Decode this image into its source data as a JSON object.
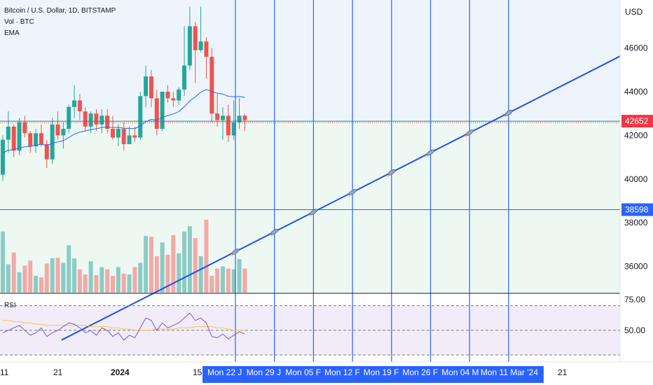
{
  "legend": {
    "symbol": "Bitcoin / U.S. Dollar, 1D, BITSTAMP",
    "volume": "Vol · BTC",
    "ema": "EMA"
  },
  "currency": "USD",
  "rsi_label": "RSI",
  "colors": {
    "up": "#26a69a",
    "down": "#ef5350",
    "up_vol": "#8ccbc3",
    "down_vol": "#f2a9a7",
    "ema": "#2962ff",
    "rsi": "#7e57c2",
    "rsi_ma": "#f5c542",
    "blue": "#2962ff",
    "green_line": "#089981",
    "price_tag": "#f23645",
    "zone_blue": "#eef4fc",
    "zone_green": "#edf8f3",
    "rsi_bg": "#f1ecf8"
  },
  "chart_data": {
    "type": "candlestick",
    "price_axis": {
      "ticks": [
        "46000",
        "44000",
        "42000",
        "40000",
        "38000",
        "36000"
      ],
      "tick_values": [
        46000,
        44000,
        42000,
        40000,
        38000,
        36000
      ],
      "range": [
        34800,
        48200
      ]
    },
    "last_price": {
      "value": 42652,
      "label": "42652"
    },
    "horizontal_level": {
      "value": 38598,
      "label": "38598"
    },
    "rsi_axis": {
      "ticks": [
        "75.00",
        "50.00"
      ],
      "tick_values": [
        75,
        50
      ],
      "range": [
        25,
        80
      ],
      "bands": [
        70,
        30
      ]
    },
    "time_axis": [
      "11",
      "21",
      "2024",
      "15",
      "21"
    ],
    "date_markers": [
      "Mon 22 J",
      "Mon 29 J",
      "Mon 05 F",
      "Mon 12 F",
      "Mon 19 F",
      "Mon 26 F",
      "Mon 04 M",
      "Mon 11 Mar '24"
    ],
    "candles": [
      [
        40200,
        42000,
        39900,
        41800
      ],
      [
        41800,
        43100,
        41200,
        42400
      ],
      [
        42400,
        42500,
        41000,
        41300
      ],
      [
        41300,
        42800,
        41100,
        42600
      ],
      [
        42600,
        42900,
        41900,
        42100
      ],
      [
        42100,
        42200,
        41200,
        41500
      ],
      [
        41500,
        42300,
        41200,
        42100
      ],
      [
        42100,
        42500,
        41500,
        41600
      ],
      [
        41600,
        41800,
        40500,
        40900
      ],
      [
        40900,
        42800,
        40700,
        42500
      ],
      [
        42500,
        43100,
        41800,
        42000
      ],
      [
        42000,
        42600,
        41400,
        42300
      ],
      [
        42300,
        43400,
        42100,
        43300
      ],
      [
        43300,
        44300,
        42800,
        43600
      ],
      [
        43600,
        43900,
        42700,
        43100
      ],
      [
        43100,
        43300,
        42200,
        42400
      ],
      [
        42400,
        43100,
        42100,
        43000
      ],
      [
        43000,
        43200,
        42200,
        42500
      ],
      [
        42500,
        43200,
        42100,
        42900
      ],
      [
        42900,
        43200,
        42100,
        42300
      ],
      [
        42300,
        42900,
        41800,
        41900
      ],
      [
        41900,
        42500,
        41500,
        42300
      ],
      [
        42300,
        42600,
        41300,
        41600
      ],
      [
        41600,
        42400,
        41600,
        42000
      ],
      [
        42000,
        42400,
        41700,
        41900
      ],
      [
        41900,
        44000,
        41800,
        43800
      ],
      [
        43800,
        45200,
        43300,
        44700
      ],
      [
        44700,
        45000,
        43300,
        43700
      ],
      [
        43700,
        44100,
        42000,
        42300
      ],
      [
        42300,
        44000,
        42200,
        44000
      ],
      [
        44000,
        44300,
        43500,
        43700
      ],
      [
        43700,
        44000,
        43300,
        43600
      ],
      [
        43600,
        44200,
        43400,
        44100
      ],
      [
        44100,
        47000,
        43800,
        45200
      ],
      [
        45200,
        47900,
        45000,
        47000
      ],
      [
        47000,
        47200,
        44400,
        45900
      ],
      [
        45900,
        47900,
        45800,
        46300
      ],
      [
        46300,
        46500,
        44600,
        45600
      ],
      [
        45600,
        46000,
        42600,
        43000
      ],
      [
        43000,
        43900,
        42400,
        42700
      ],
      [
        42700,
        43300,
        41800,
        42900
      ],
      [
        42900,
        43400,
        41700,
        42000
      ],
      [
        42000,
        43600,
        41800,
        42600
      ],
      [
        42600,
        43700,
        42300,
        42900
      ],
      [
        42900,
        43000,
        42200,
        42700
      ]
    ],
    "ema": [
      41200,
      41320,
      41350,
      41430,
      41480,
      41490,
      41550,
      41590,
      41540,
      41640,
      41700,
      41760,
      41900,
      42060,
      42150,
      42200,
      42270,
      42300,
      42360,
      42380,
      42360,
      42360,
      42330,
      42320,
      42310,
      42440,
      42630,
      42730,
      42700,
      42820,
      42910,
      42980,
      43090,
      43310,
      43580,
      43760,
      43980,
      44100,
      44010,
      43930,
      43890,
      43790,
      43770,
      43780,
      43740
    ],
    "volumes": [
      0.84,
      0.39,
      0.55,
      0.28,
      0.37,
      0.44,
      0.23,
      0.21,
      0.4,
      0.47,
      0.48,
      0.41,
      0.65,
      0.47,
      0.32,
      0.25,
      0.43,
      0.24,
      0.35,
      0.32,
      0.23,
      0.35,
      0.26,
      0.25,
      0.35,
      0.41,
      0.78,
      0.77,
      0.5,
      0.69,
      0.52,
      0.79,
      0.54,
      0.84,
      0.91,
      0.75,
      0.5,
      1.0,
      0.23,
      0.33,
      0.36,
      0.33,
      0.32,
      0.46,
      0.33
    ],
    "rsi": [
      48,
      50,
      52,
      54,
      50,
      46,
      48,
      52,
      45,
      48,
      50,
      53,
      56,
      55,
      52,
      48,
      50,
      46,
      52,
      50,
      45,
      48,
      42,
      46,
      44,
      52,
      60,
      58,
      50,
      56,
      52,
      54,
      56,
      60,
      64,
      58,
      60,
      56,
      45,
      44,
      47,
      43,
      46,
      49,
      47
    ],
    "rsi_ma": [
      58,
      58,
      57,
      57,
      56,
      56,
      55,
      55,
      54,
      54,
      54,
      54,
      54,
      54,
      54,
      54,
      53,
      53,
      53,
      53,
      52,
      52,
      51,
      51,
      50,
      50,
      50,
      50,
      51,
      51,
      51,
      51,
      52,
      52,
      52,
      53,
      53,
      53,
      53,
      52,
      52,
      51,
      50,
      50,
      50
    ],
    "trendline": [
      {
        "time_index": 30,
        "price": 35100
      },
      {
        "time_index": 95,
        "price": 43420
      }
    ]
  }
}
